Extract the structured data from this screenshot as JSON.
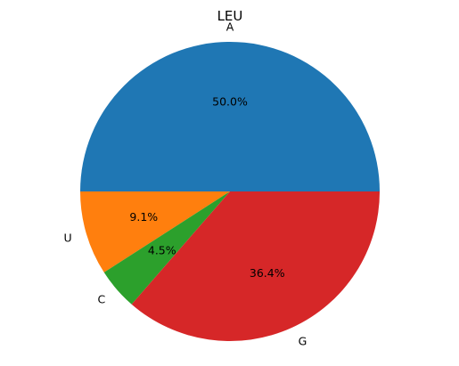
{
  "chart_data": {
    "type": "pie",
    "title": "LEU",
    "slices": [
      {
        "label": "A",
        "value": 50.0,
        "pct_label": "50.0%",
        "color": "#1f77b4"
      },
      {
        "label": "U",
        "value": 9.1,
        "pct_label": "9.1%",
        "color": "#ff7f0e"
      },
      {
        "label": "C",
        "value": 4.5,
        "pct_label": "4.5%",
        "color": "#2ca02c"
      },
      {
        "label": "G",
        "value": 36.4,
        "pct_label": "36.4%",
        "color": "#d62728"
      }
    ],
    "start_angle": 0,
    "direction": "counterclockwise"
  }
}
